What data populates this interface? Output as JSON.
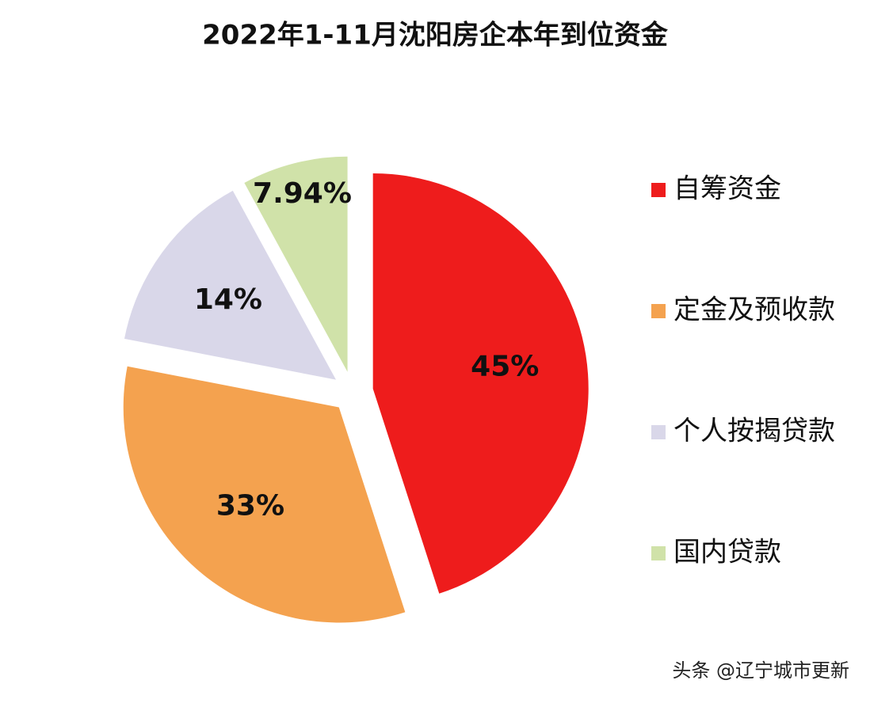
{
  "chart_data": {
    "type": "pie",
    "title": "2022年1-11月沈阳房企本年到位资金",
    "categories": [
      "自筹资金",
      "定金及预收款",
      "个人按揭贷款",
      "国内贷款"
    ],
    "values": [
      45,
      33,
      14,
      7.94
    ],
    "value_labels": [
      "45%",
      "33%",
      "14%",
      "7.94%"
    ],
    "colors": [
      "#ee1c1c",
      "#f4a24f",
      "#d9d7e9",
      "#d0e2a9"
    ],
    "legend": "right",
    "watermark": "头条 @辽宁城市更新"
  }
}
